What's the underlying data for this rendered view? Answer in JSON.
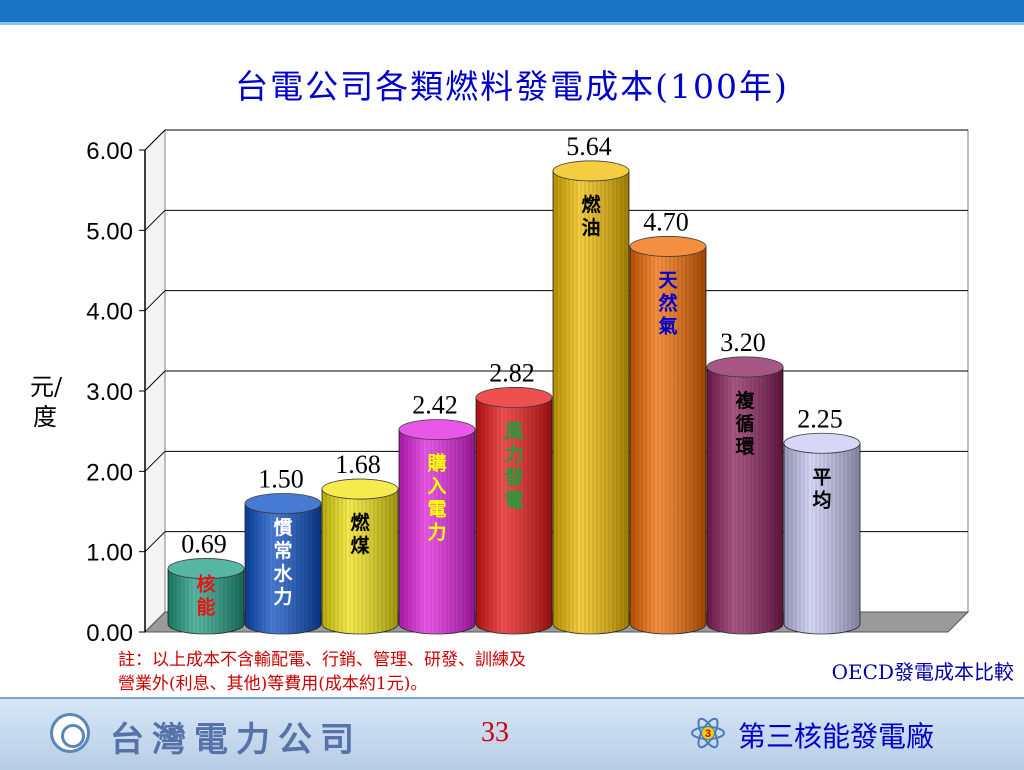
{
  "chart_data": {
    "type": "bar",
    "title": "台電公司各類燃料發電成本(100年)",
    "ylabel": "元/度",
    "ylim": [
      0,
      6
    ],
    "yticks": [
      "0.00",
      "1.00",
      "2.00",
      "3.00",
      "4.00",
      "5.00",
      "6.00"
    ],
    "grid": true,
    "categories": [
      "核能",
      "慣常水力",
      "燃煤",
      "購入電力",
      "風力發電",
      "燃油",
      "天然氣",
      "複循環",
      "平均"
    ],
    "values": [
      0.69,
      1.5,
      1.68,
      2.42,
      2.82,
      5.64,
      4.7,
      3.2,
      2.25
    ],
    "value_labels": [
      "0.69",
      "1.50",
      "1.68",
      "2.42",
      "2.82",
      "5.64",
      "4.70",
      "3.20",
      "2.25"
    ],
    "bar_colors": [
      "#1f9e82",
      "#0a4fc4",
      "#f2e411",
      "#e21fe0",
      "#e81515",
      "#f2bd00",
      "#f26a00",
      "#8a1e5a",
      "#c8c8f4"
    ],
    "label_colors": [
      "#e81515",
      "#ffffff",
      "#000000",
      "#ffff00",
      "#1f9e3a",
      "#000000",
      "#0000cc",
      "#000000",
      "#000000"
    ]
  },
  "note": {
    "line1": "註：以上成本不含輸配電、行銷、管理、研發、訓練及",
    "line2": "營業外(利息、其他)等費用(成本約1元)。"
  },
  "oecd_text": "OECD發電成本比較",
  "footer": {
    "company": "台灣電力公司",
    "page_number": "33",
    "plant_name": "第三核能發電廠",
    "plant_badge": "3"
  }
}
